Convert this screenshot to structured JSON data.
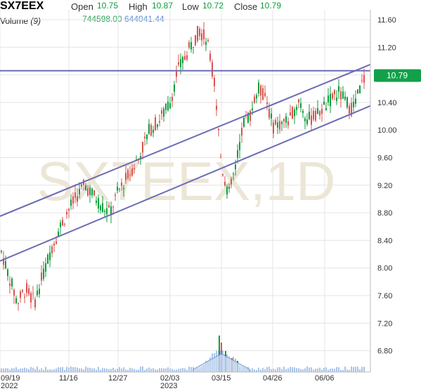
{
  "header": {
    "symbol": "SX7EEX",
    "open_label": "Open",
    "open_value": "10.75",
    "high_label": "High",
    "high_value": "10.87",
    "low_label": "Low",
    "low_value": "10.72",
    "close_label": "Close",
    "close_value": "10.79",
    "volume_label": "Volume",
    "volume_period": "(9)",
    "volume_value": "744598.00",
    "volume_ma_value": "644041.44"
  },
  "watermark": "SX7EEX,1D",
  "price_tag": "10.79",
  "colors": {
    "up": "#0a9e3a",
    "down": "#d9534f",
    "line": "#6b6bb5",
    "volume": "#a9c4ea",
    "price_tag": "#13a04a"
  },
  "chart_data": {
    "type": "candlestick",
    "ylim": [
      6.5,
      11.7
    ],
    "y_ticks": [
      "11.60",
      "11.20",
      "10.80",
      "10.40",
      "10.00",
      "9.60",
      "9.20",
      "8.80",
      "8.40",
      "8.00",
      "7.60",
      "7.20",
      "6.80"
    ],
    "x_ticks": [
      {
        "label": "09/19",
        "sub": "2022"
      },
      {
        "label": "11/16",
        "sub": ""
      },
      {
        "label": "12/27",
        "sub": ""
      },
      {
        "label": "02/03",
        "sub": "2023"
      },
      {
        "label": "03/15",
        "sub": ""
      },
      {
        "label": "04/26",
        "sub": ""
      },
      {
        "label": "06/06",
        "sub": ""
      }
    ],
    "horizontal_line": 10.86,
    "trend_lines": [
      {
        "from": [
          "09/19",
          8.75
        ],
        "to": [
          "end",
          10.95
        ]
      },
      {
        "from": [
          "09/19",
          8.1
        ],
        "to": [
          "end",
          10.35
        ]
      }
    ],
    "close_path": [
      [
        "09/19",
        8.3
      ],
      [
        "09/26",
        7.9
      ],
      [
        "10/03",
        7.5
      ],
      [
        "10/10",
        7.7
      ],
      [
        "10/17",
        7.5
      ],
      [
        "10/24",
        7.9
      ],
      [
        "10/31",
        8.3
      ],
      [
        "11/07",
        8.6
      ],
      [
        "11/16",
        8.85
      ],
      [
        "11/23",
        9.05
      ],
      [
        "11/30",
        9.2
      ],
      [
        "12/07",
        9.05
      ],
      [
        "12/14",
        8.9
      ],
      [
        "12/21",
        8.8
      ],
      [
        "12/27",
        9.1
      ],
      [
        "01/05",
        9.35
      ],
      [
        "01/12",
        9.6
      ],
      [
        "01/19",
        10.0
      ],
      [
        "01/26",
        10.15
      ],
      [
        "02/03",
        10.4
      ],
      [
        "02/10",
        10.85
      ],
      [
        "02/17",
        11.05
      ],
      [
        "02/24",
        11.25
      ],
      [
        "03/03",
        11.45
      ],
      [
        "03/08",
        11.3
      ],
      [
        "03/10",
        10.75
      ],
      [
        "03/15",
        9.5
      ],
      [
        "03/20",
        9.05
      ],
      [
        "03/24",
        9.5
      ],
      [
        "03/31",
        10.1
      ],
      [
        "04/06",
        10.25
      ],
      [
        "04/13",
        10.6
      ],
      [
        "04/20",
        10.5
      ],
      [
        "04/26",
        10.05
      ],
      [
        "05/03",
        10.1
      ],
      [
        "05/10",
        10.15
      ],
      [
        "05/17",
        10.45
      ],
      [
        "05/24",
        10.15
      ],
      [
        "05/31",
        10.2
      ],
      [
        "06/06",
        10.35
      ],
      [
        "06/13",
        10.55
      ],
      [
        "06/20",
        10.3
      ],
      [
        "06/27",
        10.79
      ]
    ],
    "volume_spike_date": "03/15"
  }
}
